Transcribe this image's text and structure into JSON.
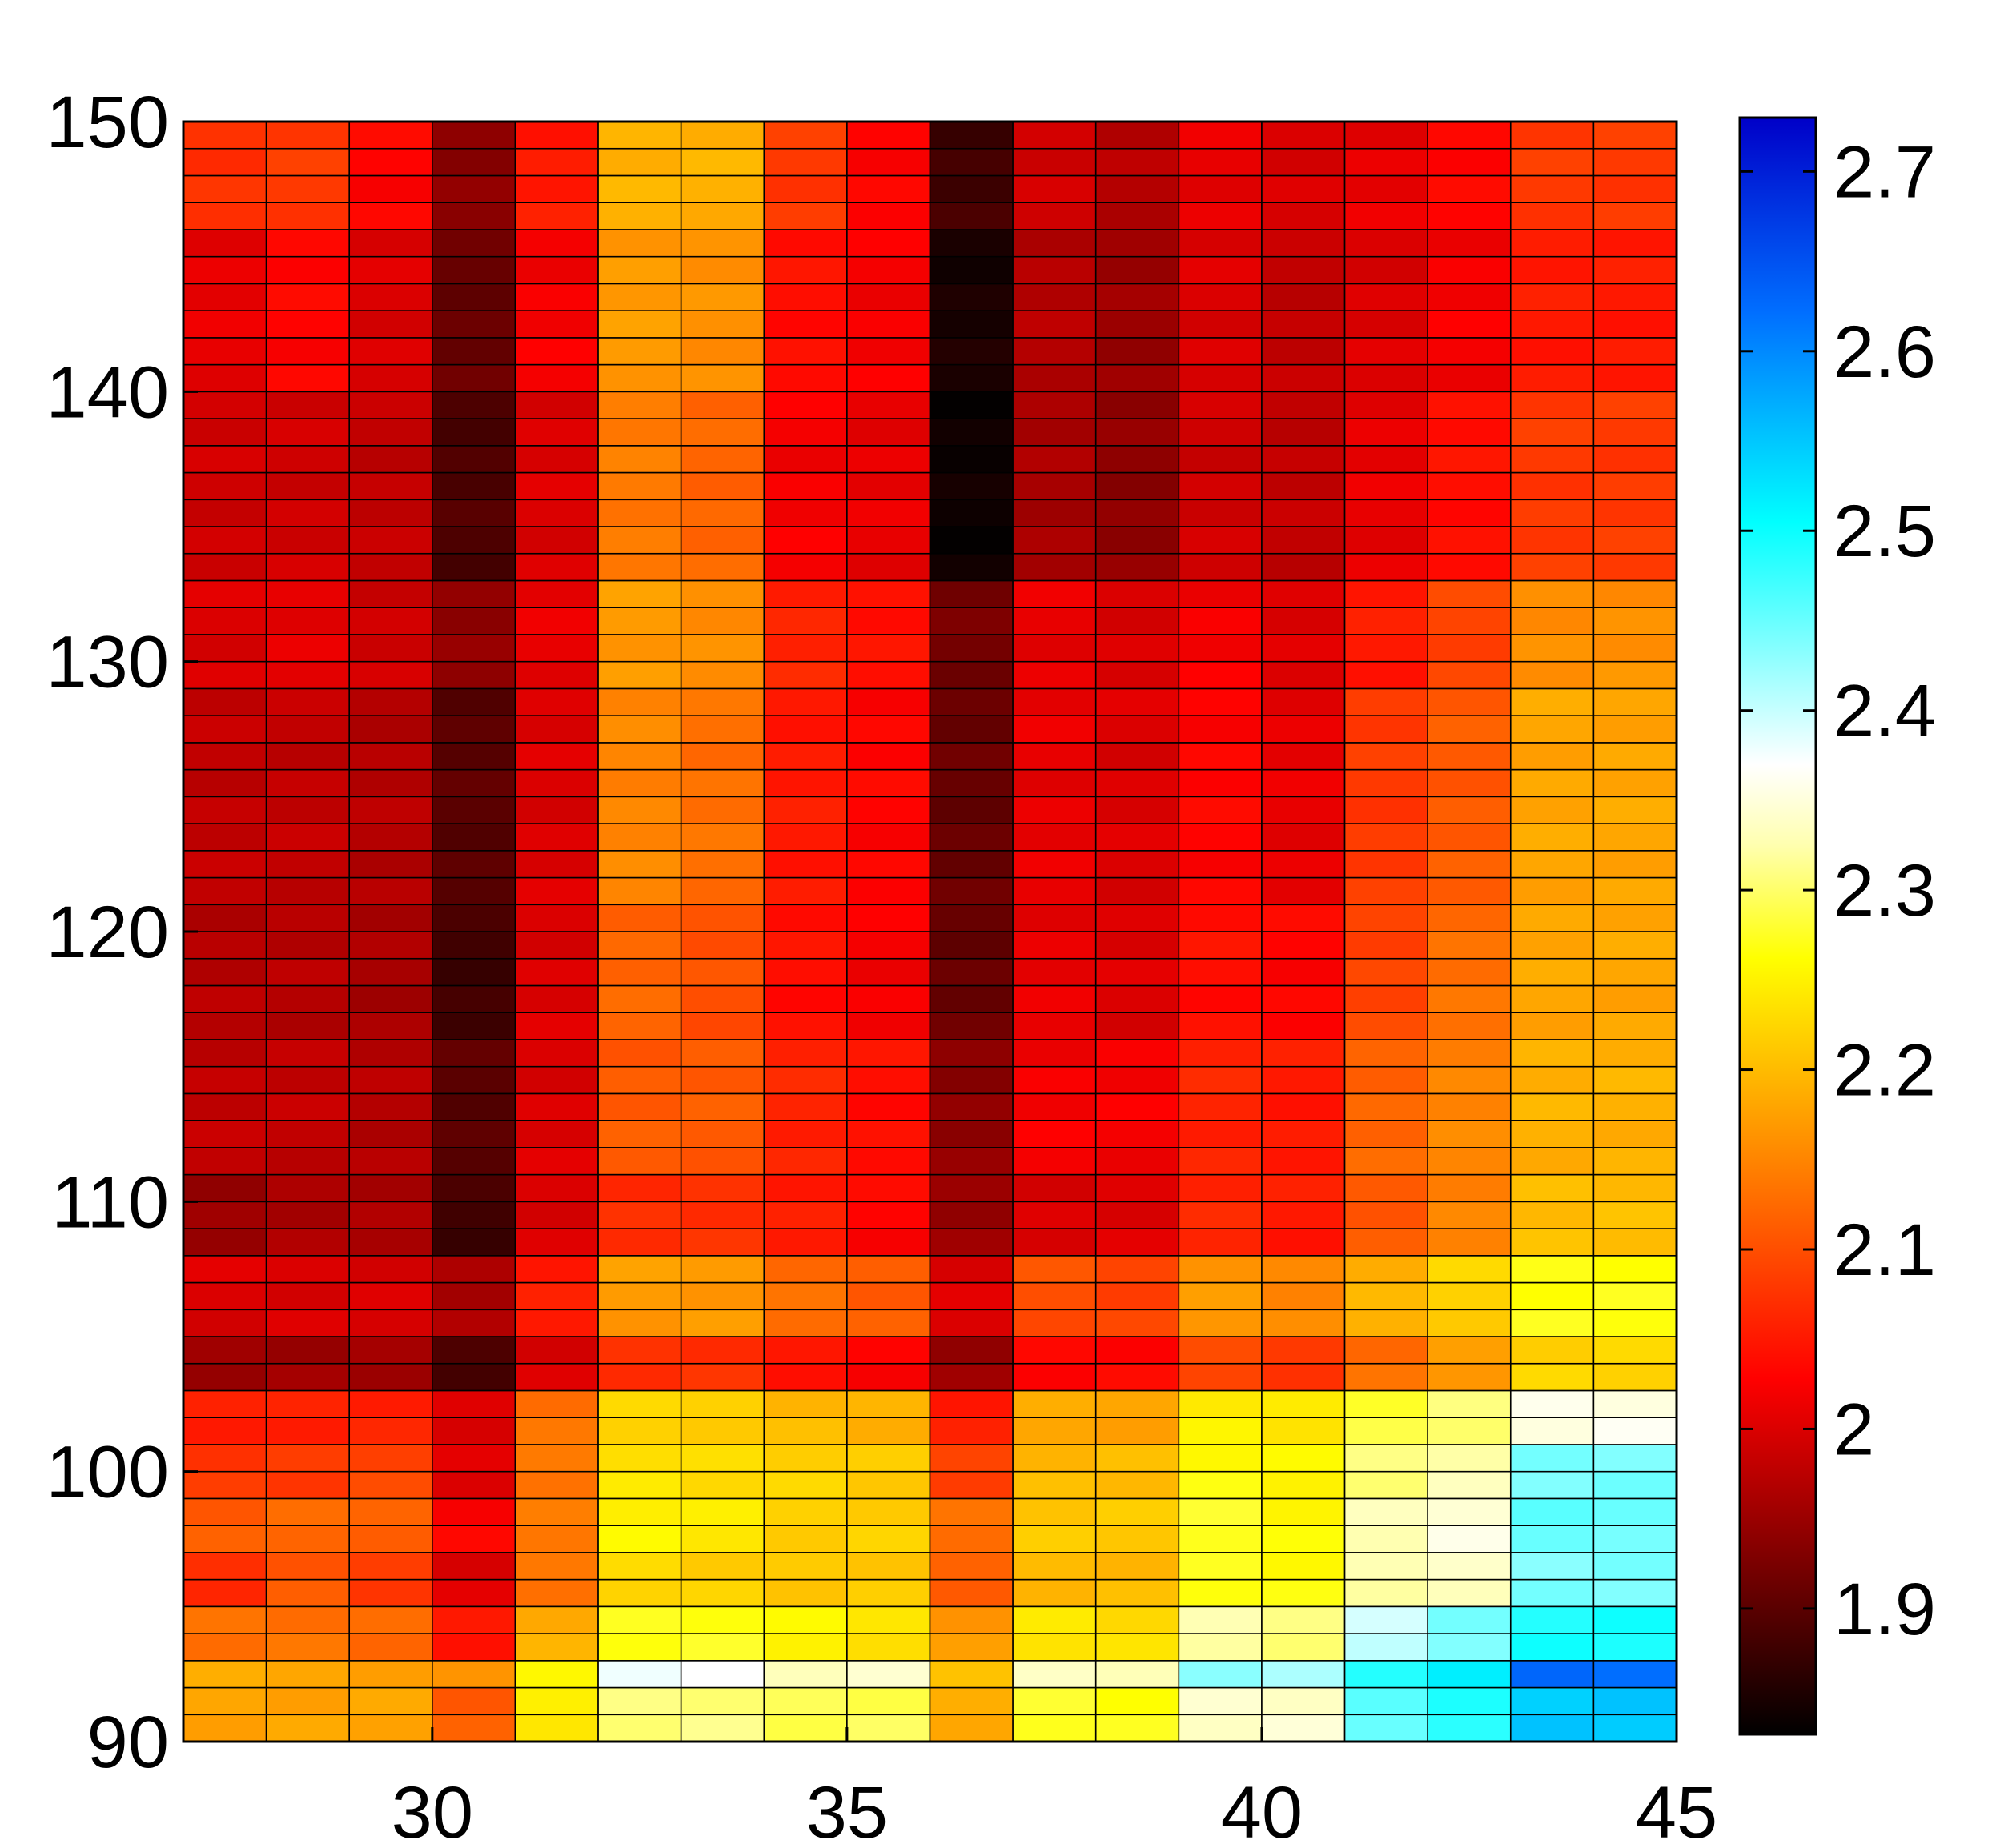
{
  "chart_data": {
    "type": "heatmap",
    "title": "",
    "xlabel": "",
    "ylabel": "",
    "x_columns": [
      27.5,
      28.5,
      29.5,
      30.5,
      31.5,
      32.5,
      33.5,
      34.5,
      35.5,
      36.5,
      37.5,
      38.5,
      39.5,
      40.5,
      41.5,
      42.5,
      43.5,
      44.5
    ],
    "y_rows": "90–150, step 1 (row 0 = 90, row 59 = 149)",
    "xlim": [
      27,
      45
    ],
    "ylim": [
      90,
      150
    ],
    "xticks": [
      30,
      35,
      40,
      45
    ],
    "yticks": [
      90,
      100,
      110,
      120,
      130,
      140,
      150
    ],
    "xtick_labels": [
      "30",
      "35",
      "40",
      "45"
    ],
    "ytick_labels": [
      "90",
      "100",
      "110",
      "120",
      "130",
      "140",
      "150"
    ],
    "colorbar": {
      "colormap": "hot-to-cold (black → red → yellow → white → cyan → blue)",
      "range": [
        1.83,
        2.73
      ],
      "ticks": [
        1.9,
        2.0,
        2.1,
        2.2,
        2.3,
        2.4,
        2.5,
        2.6,
        2.7
      ],
      "tick_labels": [
        "1.9",
        "2",
        "2.1",
        "2.2",
        "2.3",
        "2.4",
        "2.5",
        "2.6",
        "2.7"
      ]
    },
    "column_profiles": {
      "rows_90_91": [
        2.18,
        2.18,
        2.18,
        2.11,
        2.24,
        2.31,
        2.31,
        2.29,
        2.29,
        2.18,
        2.28,
        2.27,
        2.34,
        2.34,
        2.45,
        2.49,
        2.55,
        2.55
      ],
      "row_92": [
        2.18,
        2.18,
        2.18,
        2.16,
        2.26,
        2.37,
        2.37,
        2.34,
        2.34,
        2.21,
        2.33,
        2.33,
        2.44,
        2.41,
        2.49,
        2.51,
        2.63,
        2.63
      ],
      "rows_93_94": [
        2.13,
        2.13,
        2.12,
        2.05,
        2.19,
        2.27,
        2.27,
        2.25,
        2.24,
        2.17,
        2.24,
        2.23,
        2.32,
        2.31,
        2.4,
        2.44,
        2.49,
        2.49
      ],
      "rows_95_96": [
        2.07,
        2.11,
        2.08,
        2.0,
        2.13,
        2.23,
        2.22,
        2.21,
        2.21,
        2.11,
        2.2,
        2.2,
        2.27,
        2.26,
        2.32,
        2.34,
        2.44,
        2.44
      ],
      "rows_97_98": [
        2.11,
        2.12,
        2.12,
        2.03,
        2.14,
        2.25,
        2.24,
        2.22,
        2.22,
        2.13,
        2.21,
        2.21,
        2.28,
        2.26,
        2.33,
        2.35,
        2.45,
        2.45
      ],
      "rows_99_100": [
        2.08,
        2.08,
        2.09,
        2.0,
        2.14,
        2.24,
        2.23,
        2.22,
        2.21,
        2.09,
        2.2,
        2.2,
        2.26,
        2.25,
        2.31,
        2.33,
        2.44,
        2.44
      ],
      "rows_101_102": [
        2.05,
        2.06,
        2.06,
        2.0,
        2.13,
        2.22,
        2.22,
        2.2,
        2.19,
        2.05,
        2.18,
        2.18,
        2.25,
        2.24,
        2.28,
        2.3,
        2.36,
        2.36
      ],
      "rows_103_104": [
        1.95,
        1.95,
        1.95,
        1.89,
        2.0,
        2.07,
        2.07,
        2.04,
        2.03,
        1.95,
        2.03,
        2.03,
        2.09,
        2.08,
        2.13,
        2.17,
        2.22,
        2.22
      ],
      "rows_105_107": [
        2.0,
        2.0,
        2.0,
        1.96,
        2.05,
        2.17,
        2.17,
        2.13,
        2.11,
        2.0,
        2.1,
        2.09,
        2.17,
        2.15,
        2.19,
        2.22,
        2.27,
        2.27
      ],
      "rows_108_110": [
        1.95,
        1.96,
        1.96,
        1.88,
        2.0,
        2.07,
        2.07,
        2.05,
        2.03,
        1.95,
        2.0,
        2.0,
        2.06,
        2.05,
        2.11,
        2.15,
        2.2,
        2.2
      ],
      "rows_111_115": [
        1.98,
        1.98,
        1.97,
        1.9,
        2.0,
        2.11,
        2.11,
        2.06,
        2.04,
        1.94,
        2.02,
        2.02,
        2.06,
        2.05,
        2.12,
        2.15,
        2.19,
        2.19
      ],
      "rows_116_120": [
        1.97,
        1.97,
        1.96,
        1.88,
        2.0,
        2.12,
        2.1,
        2.04,
        2.02,
        1.91,
        2.01,
        2.0,
        2.04,
        2.03,
        2.09,
        2.13,
        2.18,
        2.18
      ],
      "rows_121_128": [
        1.98,
        1.98,
        1.97,
        1.9,
        2.0,
        2.15,
        2.13,
        2.05,
        2.03,
        1.91,
        2.01,
        2.0,
        2.03,
        2.01,
        2.08,
        2.11,
        2.18,
        2.18
      ],
      "rows_129_132": [
        2.0,
        2.01,
        1.99,
        1.94,
        2.01,
        2.17,
        2.16,
        2.06,
        2.04,
        1.92,
        2.01,
        2.0,
        2.02,
        2.0,
        2.05,
        2.09,
        2.16,
        2.16
      ],
      "rows_133_139": [
        1.99,
        1.99,
        1.98,
        1.89,
        2.0,
        2.14,
        2.12,
        2.02,
        2.01,
        1.84,
        1.96,
        1.94,
        1.99,
        1.98,
        2.01,
        2.04,
        2.08,
        2.08
      ],
      "rows_140_145": [
        2.01,
        2.03,
        2.0,
        1.91,
        2.02,
        2.17,
        2.16,
        2.04,
        2.02,
        1.85,
        1.97,
        1.95,
        2.0,
        1.98,
        2.0,
        2.02,
        2.05,
        2.05
      ],
      "rows_146_149": [
        2.07,
        2.08,
        2.03,
        1.94,
        2.05,
        2.19,
        2.19,
        2.08,
        2.03,
        1.88,
        1.99,
        1.97,
        2.01,
        2.0,
        2.01,
        2.03,
        2.08,
        2.08
      ]
    }
  }
}
